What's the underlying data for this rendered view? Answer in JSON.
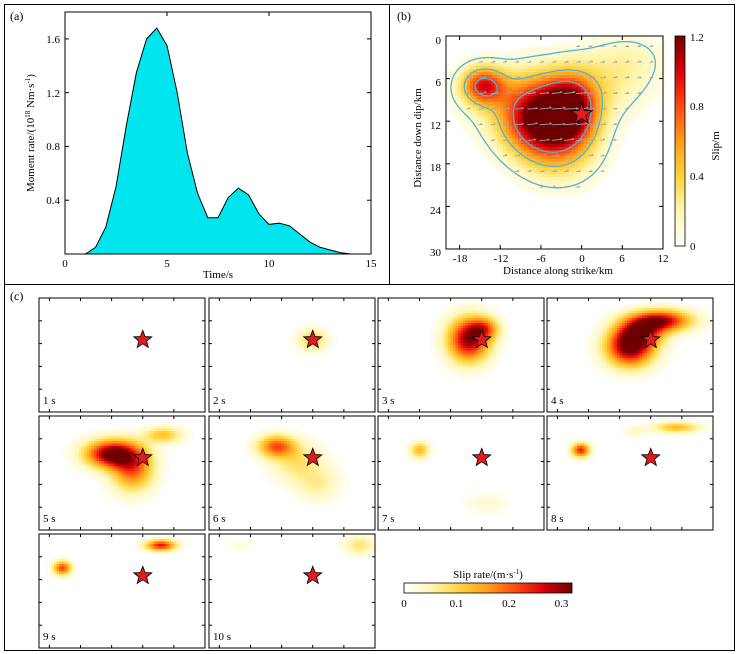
{
  "panel_labels": {
    "a": "(a)",
    "b": "(b)",
    "c": "(c)"
  },
  "colors": {
    "moment_fill": "#00e5ee",
    "star": "#e41a1c",
    "contour": "#4fb3d9",
    "slip_colormap": [
      "#ffffff",
      "#fff6b0",
      "#ffd23c",
      "#ff9c1c",
      "#ff4a10",
      "#d8000a",
      "#6e0000"
    ]
  },
  "chart_data": [
    {
      "id": "a",
      "type": "area",
      "title": "",
      "xlabel": "Time/s",
      "ylabel": "Moment rate/(10",
      "ylabel_sup": "18",
      "ylabel_rest": " Nm·s",
      "ylabel_sup2": "-1",
      "ylabel_end": ")",
      "xlim": [
        0,
        15
      ],
      "ylim": [
        0,
        1.8
      ],
      "xticks": [
        0,
        5,
        10,
        15
      ],
      "xtick_labels": [
        "0",
        "5",
        "10",
        "15"
      ],
      "yticks": [
        0.4,
        0.8,
        1.2,
        1.6
      ],
      "ytick_labels": [
        "0.4",
        "0.8",
        "1.2",
        "1.6"
      ],
      "x": [
        1.0,
        1.5,
        2.0,
        2.5,
        3.0,
        3.5,
        4.0,
        4.5,
        5.0,
        5.5,
        6.0,
        6.5,
        7.0,
        7.5,
        8.0,
        8.5,
        9.0,
        9.5,
        10.0,
        10.5,
        11.0,
        11.5,
        12.0,
        12.5,
        13.0,
        13.5,
        14.0
      ],
      "y": [
        0.0,
        0.05,
        0.2,
        0.5,
        0.95,
        1.35,
        1.6,
        1.68,
        1.55,
        1.2,
        0.75,
        0.45,
        0.27,
        0.27,
        0.42,
        0.49,
        0.44,
        0.3,
        0.22,
        0.23,
        0.21,
        0.15,
        0.09,
        0.05,
        0.03,
        0.01,
        0.0
      ]
    },
    {
      "id": "b",
      "type": "heatmap",
      "title": "",
      "xlabel": "Distance along strike/km",
      "ylabel": "Distance down dip/km",
      "xlim": [
        -20,
        12
      ],
      "ylim": [
        0,
        30
      ],
      "xticks": [
        -18,
        -12,
        -6,
        0,
        6,
        12
      ],
      "xtick_labels": [
        "-18",
        "-12",
        "-6",
        "0",
        "6",
        "12"
      ],
      "yticks": [
        0,
        6,
        12,
        18,
        24,
        30
      ],
      "ytick_labels": [
        "0",
        "6",
        "12",
        "18",
        "24",
        "30"
      ],
      "colorbar": {
        "label": "Slip/m",
        "min": 0,
        "max": 1.2,
        "ticks": [
          0,
          0.4,
          0.8,
          1.2
        ],
        "tick_labels": [
          "0",
          "0.4",
          "0.8",
          "1.2"
        ]
      },
      "hypocenter": {
        "x": 0,
        "y": 11
      },
      "patches": [
        {
          "x": -14.5,
          "y": 7,
          "sx": 2.2,
          "sy": 1.8,
          "amp": 0.85
        },
        {
          "x": -5.5,
          "y": 12,
          "sx": 4.0,
          "sy": 3.5,
          "amp": 1.12
        },
        {
          "x": -1.5,
          "y": 10,
          "sx": 2.5,
          "sy": 3.0,
          "amp": 0.75
        },
        {
          "x": -7,
          "y": 9,
          "sx": 6.0,
          "sy": 3.5,
          "amp": 0.35
        },
        {
          "x": 4,
          "y": 6,
          "sx": 4.5,
          "sy": 3.5,
          "amp": 0.2
        },
        {
          "x": -3,
          "y": 16,
          "sx": 4.0,
          "sy": 3.5,
          "amp": 0.3
        },
        {
          "x": 8,
          "y": 3,
          "sx": 3.5,
          "sy": 2.5,
          "amp": 0.1
        }
      ]
    },
    {
      "id": "c",
      "type": "heatmap",
      "title": "",
      "xlim": [
        -20,
        12
      ],
      "ylim": [
        0,
        30
      ],
      "hypocenter": {
        "x": 0,
        "y": 11
      },
      "colorbar": {
        "label": "Slip rate/(m·s",
        "label_sup": "-1",
        "label_end": ")",
        "min": 0,
        "max": 0.32,
        "ticks": [
          0,
          0.1,
          0.2,
          0.3
        ],
        "tick_labels": [
          "0",
          "0.1",
          "0.2",
          "0.3"
        ]
      },
      "frames": [
        {
          "label": "1 s",
          "patches": []
        },
        {
          "label": "2 s",
          "patches": [
            {
              "x": 0,
              "y": 11,
              "sx": 2.0,
              "sy": 2.0,
              "amp": 0.1
            }
          ]
        },
        {
          "label": "3 s",
          "patches": [
            {
              "x": -2.5,
              "y": 11,
              "sx": 2.8,
              "sy": 4.0,
              "amp": 0.3
            },
            {
              "x": 0.5,
              "y": 8,
              "sx": 2.0,
              "sy": 2.0,
              "amp": 0.15
            }
          ]
        },
        {
          "label": "4 s",
          "patches": [
            {
              "x": -4,
              "y": 13,
              "sx": 3.2,
              "sy": 3.5,
              "amp": 0.32
            },
            {
              "x": 2,
              "y": 6,
              "sx": 4.0,
              "sy": 2.0,
              "amp": 0.28
            },
            {
              "x": -2,
              "y": 9,
              "sx": 3.0,
              "sy": 2.5,
              "amp": 0.2
            }
          ]
        },
        {
          "label": "5 s",
          "patches": [
            {
              "x": -6,
              "y": 10,
              "sx": 3.5,
              "sy": 2.5,
              "amp": 0.32
            },
            {
              "x": -2,
              "y": 14,
              "sx": 2.8,
              "sy": 4.0,
              "amp": 0.2
            },
            {
              "x": 4,
              "y": 5,
              "sx": 2.5,
              "sy": 1.5,
              "amp": 0.12
            }
          ]
        },
        {
          "label": "6 s",
          "patches": [
            {
              "x": -7,
              "y": 8,
              "sx": 2.5,
              "sy": 2.0,
              "amp": 0.2
            },
            {
              "x": -3,
              "y": 12,
              "sx": 3.5,
              "sy": 3.5,
              "amp": 0.08
            },
            {
              "x": 1,
              "y": 18,
              "sx": 3.0,
              "sy": 3.0,
              "amp": 0.06
            }
          ]
        },
        {
          "label": "7 s",
          "patches": [
            {
              "x": -12,
              "y": 9,
              "sx": 1.3,
              "sy": 1.5,
              "amp": 0.13
            },
            {
              "x": 1,
              "y": 23,
              "sx": 3.0,
              "sy": 2.0,
              "amp": 0.03
            }
          ]
        },
        {
          "label": "8 s",
          "patches": [
            {
              "x": -13.5,
              "y": 9,
              "sx": 1.2,
              "sy": 1.3,
              "amp": 0.24
            },
            {
              "x": 5,
              "y": 3,
              "sx": 3.0,
              "sy": 1.0,
              "amp": 0.13
            },
            {
              "x": -3,
              "y": 4,
              "sx": 1.5,
              "sy": 1.0,
              "amp": 0.04
            }
          ]
        },
        {
          "label": "9 s",
          "patches": [
            {
              "x": -15.5,
              "y": 9,
              "sx": 1.2,
              "sy": 1.3,
              "amp": 0.22
            },
            {
              "x": 3.5,
              "y": 3,
              "sx": 2.0,
              "sy": 1.0,
              "amp": 0.25
            }
          ]
        },
        {
          "label": "10 s",
          "patches": [
            {
              "x": 9,
              "y": 3,
              "sx": 2.0,
              "sy": 1.8,
              "amp": 0.08
            },
            {
              "x": -14,
              "y": 3,
              "sx": 2.0,
              "sy": 1.0,
              "amp": 0.02
            }
          ]
        }
      ]
    }
  ]
}
